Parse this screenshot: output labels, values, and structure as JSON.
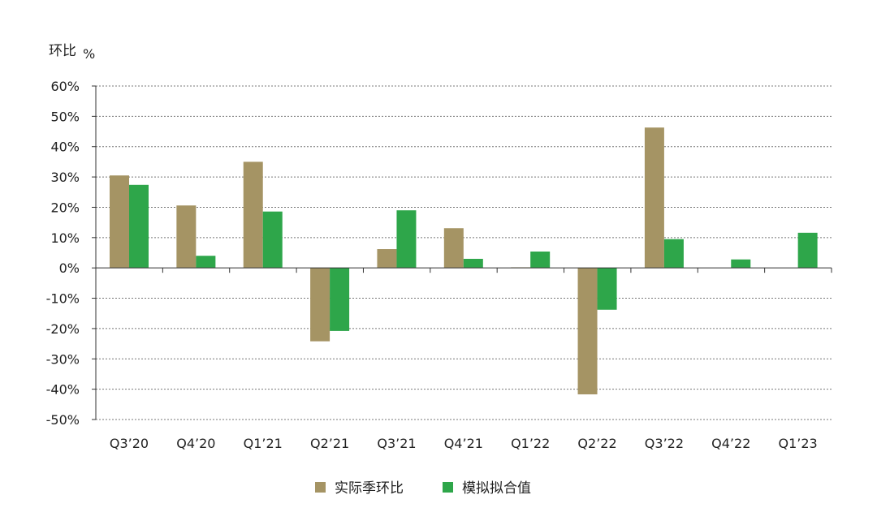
{
  "chart_data": {
    "type": "bar",
    "title": "",
    "xlabel": "",
    "ylabel": "环比",
    "ylabel_unit": "%",
    "categories": [
      "Q3’20",
      "Q4’20",
      "Q1’21",
      "Q2’21",
      "Q3’21",
      "Q4’21",
      "Q1’22",
      "Q2’22",
      "Q3’22",
      "Q4’22",
      "Q1’23"
    ],
    "series": [
      {
        "name": "实际季环比",
        "color": "#a59464",
        "values": [
          30.5,
          20.6,
          35.0,
          -24.2,
          6.2,
          13.1,
          0.2,
          -41.7,
          46.3,
          null,
          null
        ]
      },
      {
        "name": "模拟拟合值",
        "color": "#2ea64a",
        "values": [
          27.4,
          4.0,
          18.6,
          -20.8,
          19.0,
          3.0,
          5.4,
          -13.8,
          9.5,
          2.8,
          11.6
        ]
      }
    ],
    "ylim": [
      -50,
      60
    ],
    "yticks": [
      60,
      50,
      40,
      30,
      20,
      10,
      0,
      -10,
      -20,
      -30,
      -40,
      -50
    ],
    "ytick_labels": [
      "60%",
      "50%",
      "40%",
      "30%",
      "20%",
      "10%",
      "0%",
      "-10%",
      "-20%",
      "-30%",
      "-40%",
      "-50%"
    ],
    "grid": true,
    "grid_style": "dashed",
    "legend_position": "bottom-center"
  }
}
